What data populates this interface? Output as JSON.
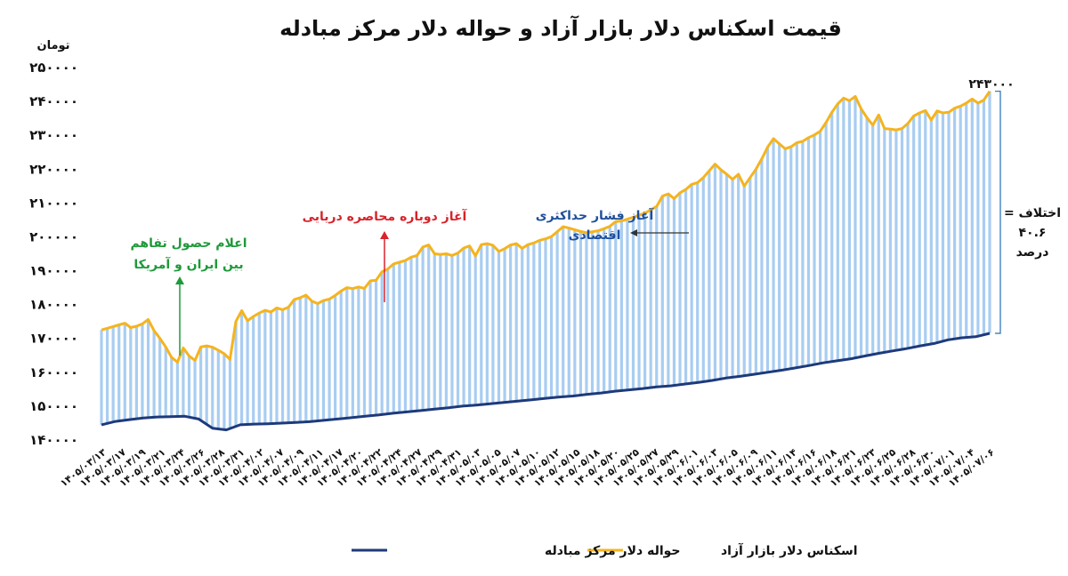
{
  "chart_data": {
    "type": "line",
    "title": "قیمت اسکناس دلار بازار آزاد و حواله دلار مرکز مبادله",
    "ylabel": "تومان",
    "ylim": [
      140000,
      250000
    ],
    "yticks": [
      "۱۴۰۰۰۰",
      "۱۵۰۰۰۰",
      "۱۶۰۰۰۰",
      "۱۷۰۰۰۰",
      "۱۸۰۰۰۰",
      "۱۹۰۰۰۰",
      "۲۰۰۰۰۰",
      "۲۱۰۰۰۰",
      "۲۲۰۰۰۰",
      "۲۳۰۰۰۰",
      "۲۴۰۰۰۰",
      "۲۵۰۰۰۰"
    ],
    "ytick_values": [
      140000,
      150000,
      160000,
      170000,
      180000,
      190000,
      200000,
      210000,
      220000,
      230000,
      240000,
      250000
    ],
    "x_tick_labels": [
      "۱۴۰۵/۰۳/۱۳",
      "۱۴۰۵/۰۳/۱۷",
      "۱۴۰۵/۰۳/۱۹",
      "۱۴۰۵/۰۳/۲۱",
      "۱۴۰۵/۰۳/۲۴",
      "۱۴۰۵/۰۳/۲۶",
      "۱۴۰۵/۰۳/۲۸",
      "۱۴۰۵/۰۳/۳۱",
      "۱۴۰۵/۰۴/۰۲",
      "۱۴۰۵/۰۴/۰۷",
      "۱۴۰۵/۰۴/۰۹",
      "۱۴۰۵/۰۴/۱۱",
      "۱۴۰۵/۰۴/۱۷",
      "۱۴۰۵/۰۴/۲۰",
      "۱۴۰۵/۰۴/۲۲",
      "۱۴۰۵/۰۴/۲۴",
      "۱۴۰۵/۰۴/۲۷",
      "۱۴۰۵/۰۴/۲۹",
      "۱۴۰۵/۰۴/۳۱",
      "۱۴۰۵/۰۵/۰۳",
      "۱۴۰۵/۰۵/۰۵",
      "۱۴۰۵/۰۵/۰۷",
      "۱۴۰۵/۰۵/۱۰",
      "۱۴۰۵/۰۵/۱۲",
      "۱۴۰۵/۰۵/۱۵",
      "۱۴۰۵/۰۵/۱۸",
      "۱۴۰۵/۰۵/۲۰",
      "۱۴۰۵/۰۵/۲۵",
      "۱۴۰۵/۰۵/۲۷",
      "۱۴۰۵/۰۵/۲۹",
      "۱۴۰۵/۰۶/۰۱",
      "۱۴۰۵/۰۶/۰۳",
      "۱۴۰۵/۰۶/۰۵",
      "۱۴۰۵/۰۶/۰۹",
      "۱۴۰۵/۰۶/۱۱",
      "۱۴۰۵/۰۶/۱۴",
      "۱۴۰۵/۰۶/۱۶",
      "۱۴۰۵/۰۶/۱۸",
      "۱۴۰۵/۰۶/۲۱",
      "۱۴۰۵/۰۶/۲۳",
      "۱۴۰۵/۰۶/۲۵",
      "۱۴۰۵/۰۶/۲۸",
      "۱۴۰۵/۰۶/۳۰",
      "۱۴۰۵/۰۷/۰۱",
      "۱۴۰۵/۰۷/۰۴",
      "۱۴۰۵/۰۷/۰۶"
    ],
    "series": [
      {
        "name": "اسکناس دلار بازار آزاد",
        "color": "#f5b41d",
        "values": [
          172500,
          173000,
          173500,
          174000,
          174500,
          173200,
          173600,
          174300,
          175600,
          172300,
          170000,
          167500,
          164400,
          163000,
          167200,
          164800,
          163500,
          167500,
          167800,
          167400,
          166500,
          165500,
          163800,
          175000,
          178200,
          175200,
          176500,
          177500,
          178300,
          177800,
          179000,
          178500,
          179200,
          181500,
          182000,
          182800,
          181000,
          180300,
          181200,
          181600,
          182700,
          184000,
          185000,
          184700,
          185200,
          184800,
          187000,
          187200,
          189700,
          190500,
          192000,
          192500,
          193000,
          194000,
          194500,
          197000,
          197600,
          195000,
          194800,
          195000,
          194500,
          195200,
          196700,
          197300,
          194400,
          197700,
          198000,
          197500,
          195700,
          196500,
          197600,
          198000,
          196600,
          197700,
          198200,
          199000,
          199400,
          200100,
          201500,
          203000,
          202600,
          202100,
          201600,
          201200,
          201500,
          201800,
          202400,
          203100,
          204500,
          204700,
          205200,
          205800,
          206400,
          207000,
          208000,
          209000,
          212000,
          212700,
          211300,
          213000,
          214000,
          215500,
          216000,
          217500,
          219500,
          221500,
          219800,
          218500,
          217000,
          218500,
          215000,
          217500,
          220000,
          223000,
          226500,
          229000,
          227500,
          226000,
          226600,
          227800,
          228200,
          229300,
          230100,
          231200,
          233800,
          236800,
          239300,
          241000,
          240200,
          241500,
          237800,
          235200,
          233000,
          236000,
          232000,
          231800,
          231600,
          232000,
          233500,
          235700,
          236600,
          237300,
          234500,
          237200,
          236600,
          236800,
          238000,
          238600,
          239500,
          240700,
          239500,
          240400,
          243000
        ],
        "peak_label": "۲۴۳۰۰۰"
      },
      {
        "name": "حواله دلار مرکز مبادله",
        "color": "#1d3a7a",
        "values": [
          144500,
          145500,
          146000,
          146500,
          146800,
          146900,
          147000,
          146200,
          143500,
          143000,
          144500,
          144700,
          144800,
          145000,
          145200,
          145400,
          145800,
          146200,
          146600,
          147000,
          147400,
          147900,
          148300,
          148700,
          149100,
          149500,
          150000,
          150300,
          150700,
          151100,
          151500,
          151900,
          152300,
          152700,
          153000,
          153500,
          153900,
          154400,
          154800,
          155200,
          155700,
          156000,
          156500,
          157000,
          157600,
          158300,
          158800,
          159400,
          160000,
          160600,
          161300,
          162000,
          162800,
          163400,
          164000,
          164800,
          165600,
          166300,
          167000,
          167800,
          168500,
          169600,
          170200,
          170500,
          171500
        ]
      }
    ],
    "annotations": [
      {
        "text_lines": [
          "اعلام حصول تفاهم",
          "بین ایران و آمریکا"
        ],
        "color": "#1e9a3a"
      },
      {
        "text_lines": [
          "آغاز دوباره محاصره دریایی"
        ],
        "color": "#d8232a"
      },
      {
        "text_lines": [
          "آغاز فشار حداکثری",
          "اقتصادی"
        ],
        "color": "#1f4f9a"
      },
      {
        "text_lines": [
          "اختلاف =",
          "۴۰.۶",
          "درصد"
        ],
        "color": "#111111"
      }
    ],
    "legend": {
      "position": "bottom",
      "items": [
        {
          "label": "اسکناس دلار بازار آزاد",
          "color": "#f5b41d"
        },
        {
          "label": "حواله دلار مرکز مبادله",
          "color": "#1d3a7a"
        }
      ]
    },
    "grid": false
  }
}
